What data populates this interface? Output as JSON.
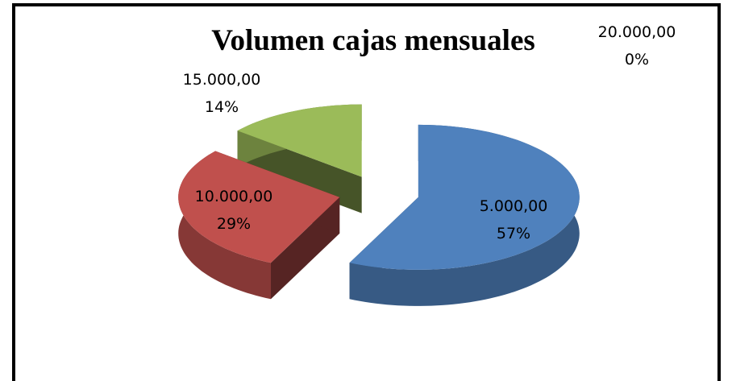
{
  "chart_data": {
    "type": "pie3d",
    "title": "Volumen cajas mensuales",
    "categories": [
      "5.000,00",
      "10.000,00",
      "15.000,00",
      "20.000,00"
    ],
    "values": [
      57,
      29,
      14,
      0
    ],
    "value_labels": [
      "57%",
      "29%",
      "14%",
      "0%"
    ],
    "colors": [
      "#4f81bd",
      "#c0504d",
      "#9bbb59",
      "#8064a2"
    ]
  }
}
